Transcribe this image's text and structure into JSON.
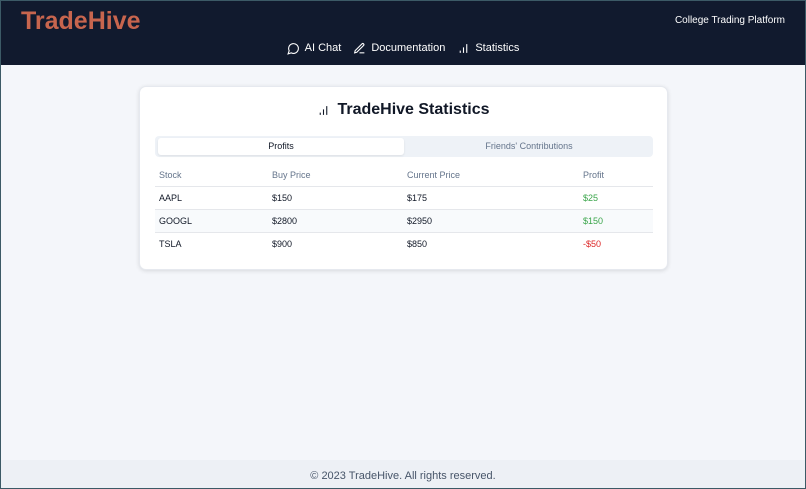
{
  "header": {
    "brand": "TradeHive",
    "tagline": "College Trading Platform",
    "nav": [
      "AI Chat",
      "Documentation",
      "Statistics"
    ]
  },
  "card": {
    "title": "TradeHive Statistics",
    "tabs": [
      "Profits",
      "Friends' Contributions"
    ],
    "active_tab": 0
  },
  "table": {
    "columns": [
      "Stock",
      "Buy Price",
      "Current Price",
      "Profit"
    ],
    "rows": [
      [
        "AAPL",
        "$150",
        "$175",
        "$25"
      ],
      [
        "GOOGL",
        "$2800",
        "$2950",
        "$150"
      ],
      [
        "TSLA",
        "$900",
        "$850",
        "-$50"
      ]
    ]
  },
  "footer": {
    "text": "© 2023 TradeHive. All rights reserved."
  }
}
